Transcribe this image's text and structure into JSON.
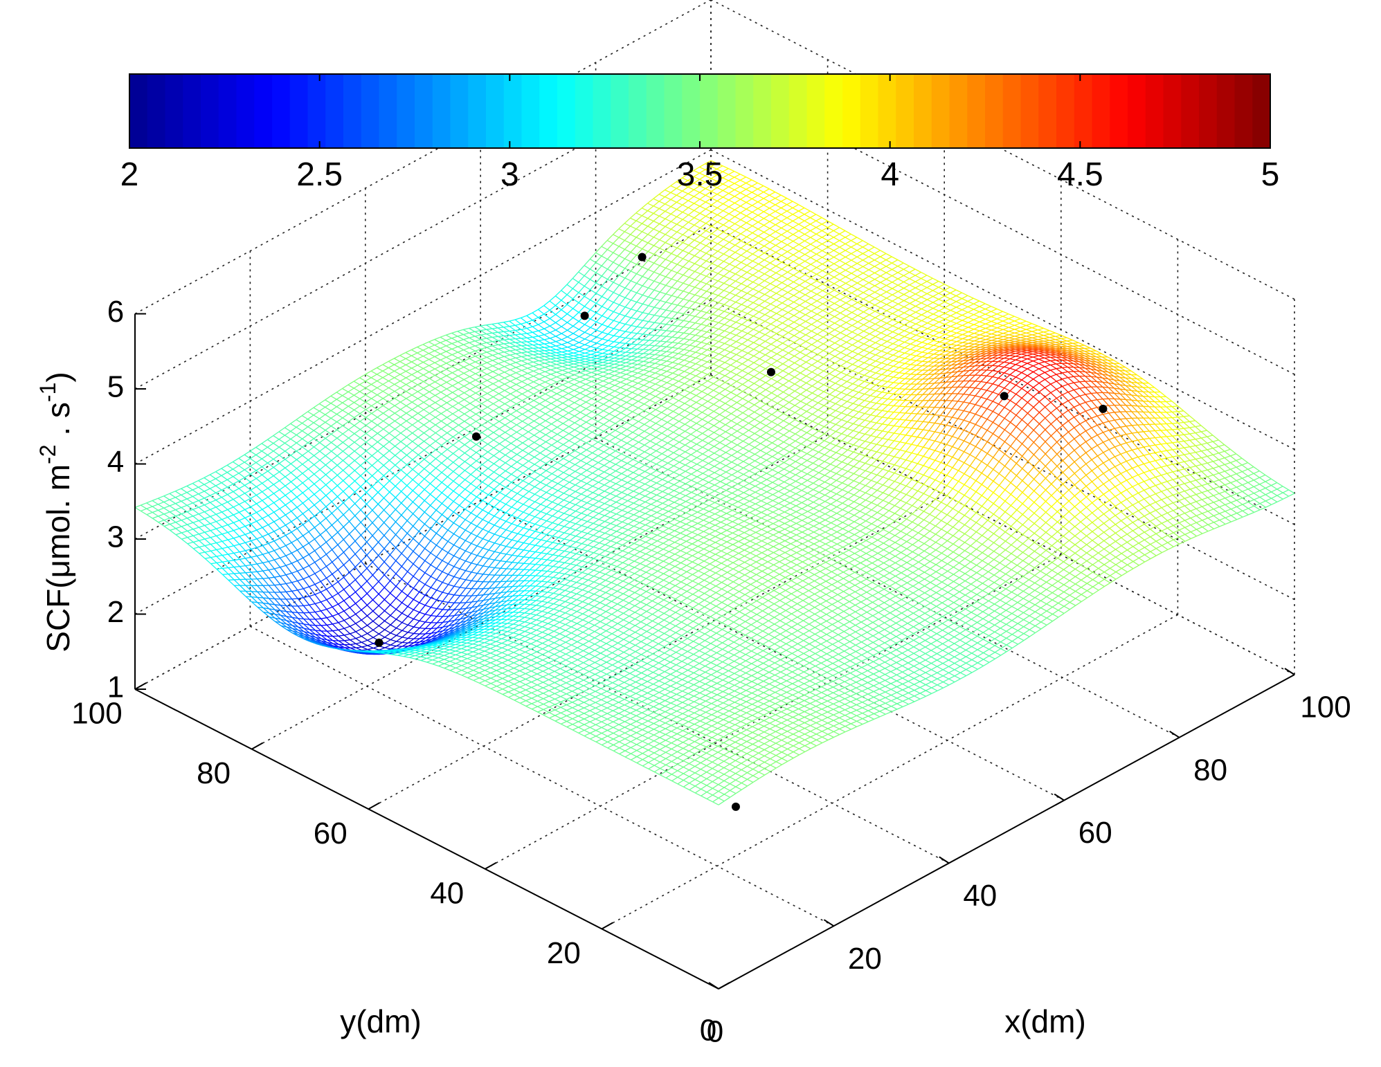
{
  "chart_data": {
    "type": "surface3d",
    "colorbar": {
      "orientation": "horizontal",
      "placement": "top",
      "min": 2,
      "max": 5,
      "tick_labels": [
        "2",
        "2.5",
        "3",
        "3.5",
        "4",
        "4.5",
        "5"
      ],
      "colormap": "jet",
      "jet_stops": [
        "#00008f",
        "#0000ff",
        "#00ffff",
        "#ffff00",
        "#ff0000",
        "#800000"
      ]
    },
    "zlabel_parts": {
      "main": "SCF(",
      "mu": "μ",
      "unit": "mol. m",
      "exp1": "-2",
      "mid": " . s",
      "exp2": "-1",
      "close": ")"
    },
    "xlabel": "x(dm)",
    "ylabel": "y(dm)",
    "xlim": [
      0,
      100
    ],
    "ylim": [
      0,
      100
    ],
    "zlim": [
      1,
      6
    ],
    "x_ticks": [
      "0",
      "20",
      "40",
      "60",
      "80",
      "100"
    ],
    "y_ticks": [
      "0",
      "20",
      "40",
      "60",
      "80",
      "100"
    ],
    "z_ticks": [
      "1",
      "2",
      "3",
      "4",
      "5",
      "6"
    ],
    "grid": true,
    "clim": [
      2,
      5
    ],
    "base_level": 3.45,
    "surface_features": [
      {
        "type": "minimum",
        "x": 14,
        "y": 72,
        "amplitude": -1.35,
        "spread_x": 16,
        "spread_y": 16
      },
      {
        "type": "maximum",
        "x": 82,
        "y": 28,
        "amplitude": 1.1,
        "spread_x": 15,
        "spread_y": 17
      },
      {
        "type": "minimum",
        "x": 70,
        "y": 92,
        "amplitude": -0.45,
        "spread_x": 10,
        "spread_y": 14
      },
      {
        "type": "rise",
        "x": 100,
        "y": 75,
        "amplitude": 0.45,
        "spread_x": 25,
        "spread_y": 45
      }
    ],
    "sample_points": [
      {
        "x": 3,
        "y": 0,
        "z": 3.3
      },
      {
        "x": 14,
        "y": 72,
        "z": 2.15
      },
      {
        "x": 40,
        "y": 81,
        "z": 3.45
      },
      {
        "x": 76,
        "y": 66,
        "z": 3.4
      },
      {
        "x": 72,
        "y": 94,
        "z": 3.2
      },
      {
        "x": 80,
        "y": 30,
        "z": 4.35
      },
      {
        "x": 85,
        "y": 18,
        "z": 4.45
      },
      {
        "x": 84,
        "y": 96,
        "z": 3.4
      }
    ]
  }
}
